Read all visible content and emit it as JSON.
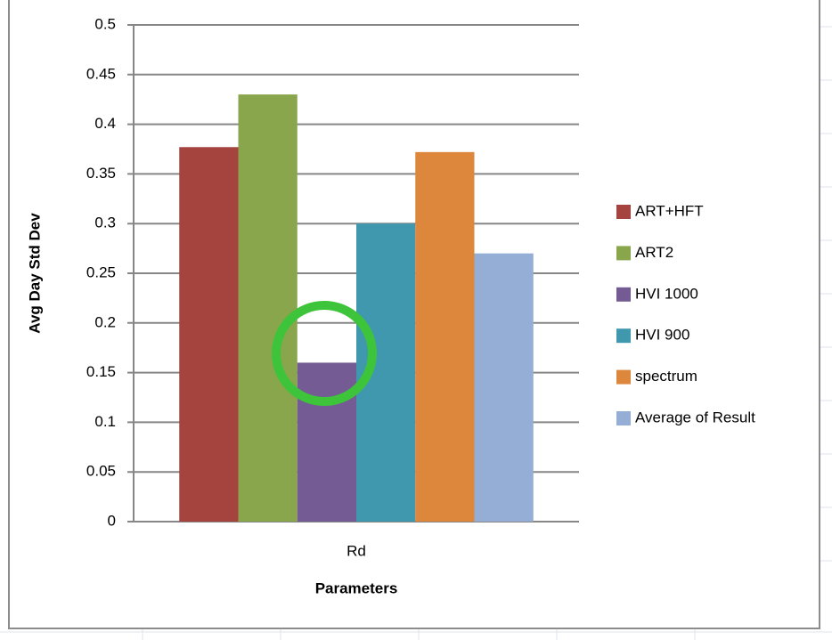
{
  "chart_data": {
    "type": "bar",
    "x_label": "Parameters",
    "y_label": "Avg Day Std Dev",
    "categories": [
      "Rd"
    ],
    "series": [
      {
        "name": "ART+HFT",
        "color": "#a5433f",
        "values": [
          0.377
        ]
      },
      {
        "name": "ART2",
        "color": "#8aa64c",
        "values": [
          0.43
        ]
      },
      {
        "name": "HVI 1000",
        "color": "#745b93",
        "values": [
          0.16
        ]
      },
      {
        "name": "HVI 900",
        "color": "#3f98ae",
        "values": [
          0.3
        ]
      },
      {
        "name": "spectrum",
        "color": "#dc873c",
        "values": [
          0.372
        ]
      },
      {
        "name": "Average of Result",
        "color": "#95aed6",
        "values": [
          0.27
        ]
      }
    ],
    "ylim": [
      0,
      0.5
    ],
    "yticks": [
      0,
      0.05,
      0.1,
      0.15,
      0.2,
      0.25,
      0.3,
      0.35,
      0.4,
      0.45,
      0.5
    ],
    "grid": true,
    "legend": "right"
  }
}
